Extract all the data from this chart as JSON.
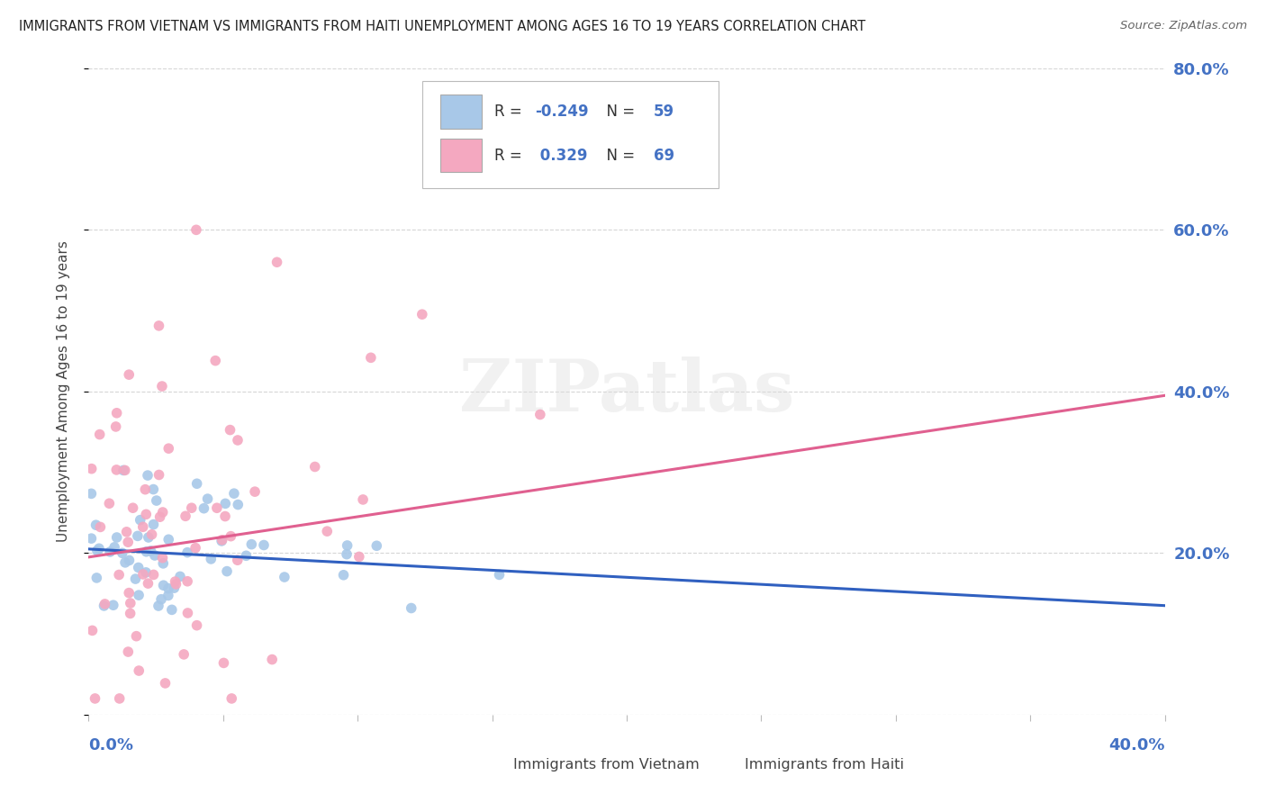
{
  "title": "IMMIGRANTS FROM VIETNAM VS IMMIGRANTS FROM HAITI UNEMPLOYMENT AMONG AGES 16 TO 19 YEARS CORRELATION CHART",
  "source": "Source: ZipAtlas.com",
  "ylabel_left_label": "Unemployment Among Ages 16 to 19 years",
  "legend_vietnam": "Immigrants from Vietnam",
  "legend_haiti": "Immigrants from Haiti",
  "r_vietnam": "-0.249",
  "n_vietnam": 59,
  "r_haiti": "0.329",
  "n_haiti": 69,
  "color_vietnam": "#a8c8e8",
  "color_haiti": "#f4a8c0",
  "line_color_vietnam": "#3060c0",
  "line_color_haiti": "#e06090",
  "background_color": "#ffffff",
  "xlim": [
    0.0,
    0.4
  ],
  "ylim": [
    0.0,
    0.8
  ],
  "yticks": [
    0.0,
    0.2,
    0.4,
    0.6,
    0.8
  ],
  "ytick_labels": [
    "",
    "20.0%",
    "40.0%",
    "60.0%",
    "80.0%"
  ]
}
